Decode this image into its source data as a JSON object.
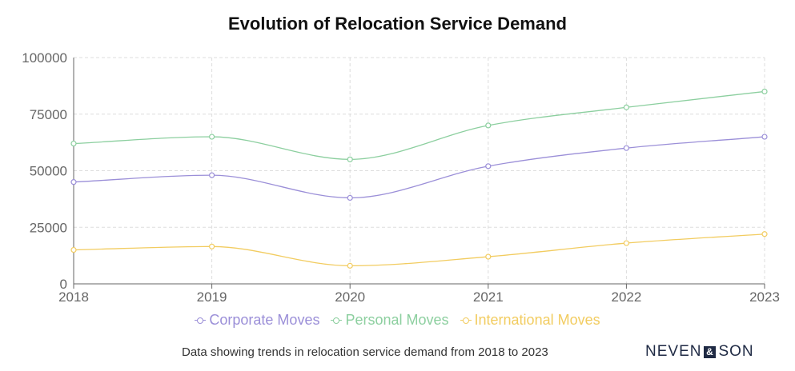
{
  "chart_data": {
    "type": "line",
    "title": "Evolution of Relocation Service Demand",
    "categories": [
      "2018",
      "2019",
      "2020",
      "2021",
      "2022",
      "2023"
    ],
    "y_ticks": [
      "0",
      "25000",
      "50000",
      "75000",
      "100000"
    ],
    "ylim": [
      0,
      100000
    ],
    "grid": true,
    "legend_position": "bottom",
    "series": [
      {
        "name": "Corporate Moves",
        "color": "#9b8fd8",
        "values": [
          45000,
          48000,
          38000,
          52000,
          60000,
          65000
        ]
      },
      {
        "name": "Personal Moves",
        "color": "#8ccf9f",
        "values": [
          62000,
          65000,
          55000,
          70000,
          78000,
          85000
        ]
      },
      {
        "name": "International Moves",
        "color": "#f2cc60",
        "values": [
          15000,
          16500,
          8000,
          12000,
          18000,
          22000
        ]
      }
    ]
  },
  "footer": {
    "caption": "Data showing trends in relocation service demand from 2018 to 2023",
    "brand_left": "NEVEN",
    "brand_mark": "&",
    "brand_right": "SON"
  }
}
